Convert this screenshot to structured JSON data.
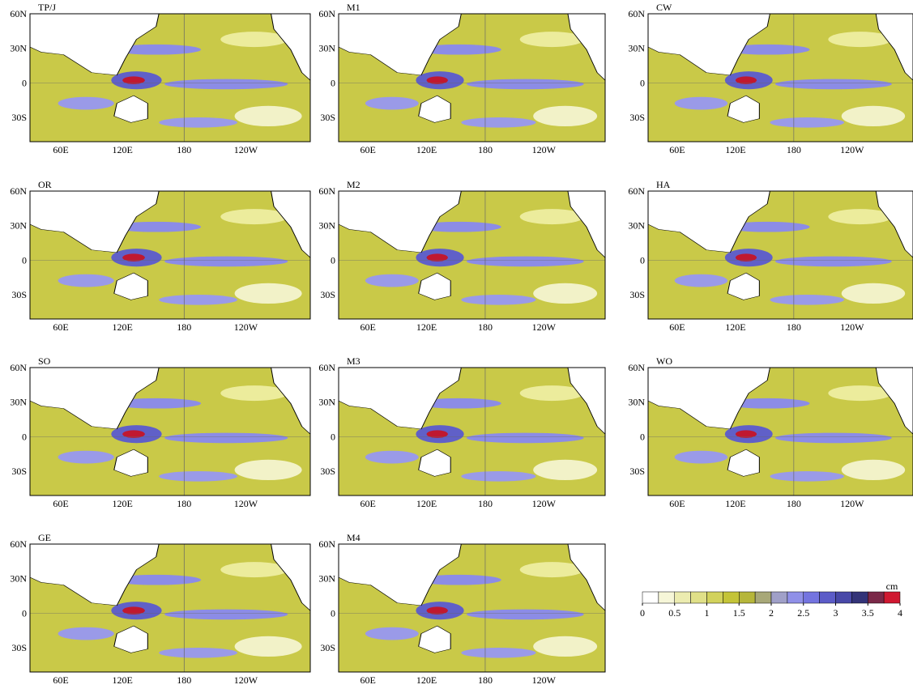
{
  "panels": [
    {
      "label": "TP/J"
    },
    {
      "label": "M1"
    },
    {
      "label": "CW"
    },
    {
      "label": "OR"
    },
    {
      "label": "M2"
    },
    {
      "label": "HA"
    },
    {
      "label": "SO"
    },
    {
      "label": "M3"
    },
    {
      "label": "WO"
    },
    {
      "label": "GE"
    },
    {
      "label": "M4"
    }
  ],
  "lat_labels": [
    "60N",
    "30N",
    "0",
    "30S"
  ],
  "lon_labels": [
    "60E",
    "120E",
    "180",
    "120W"
  ],
  "colorbar": {
    "unit": "cm",
    "range": [
      0,
      4
    ],
    "ticks": [
      0,
      0.5,
      1,
      1.5,
      2,
      2.5,
      3,
      3.5,
      4
    ],
    "colors": [
      "#ffffff",
      "#f6f6d8",
      "#ececb0",
      "#e0e088",
      "#d2d25c",
      "#c4c438",
      "#b6b63a",
      "#a8a878",
      "#a0a0c8",
      "#9090e8",
      "#7474e0",
      "#5c5cc8",
      "#4848a8",
      "#333378",
      "#7a2848",
      "#d01830"
    ]
  }
}
